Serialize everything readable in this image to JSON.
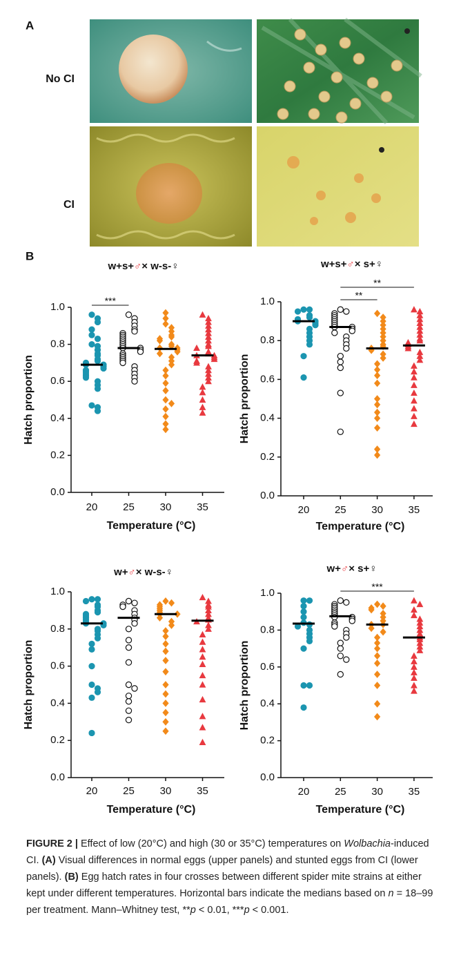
{
  "panel_a": {
    "label": "A",
    "rows": [
      "No CI",
      "CI"
    ]
  },
  "panel_b": {
    "label": "B"
  },
  "chart_data": [
    {
      "type": "strip",
      "title": [
        "w+s+",
        "♂",
        "× w-s-♀"
      ],
      "y_label": "Hatch proportion",
      "x_label": "Temperature (°C)",
      "categories": [
        "20",
        "25",
        "30",
        "35"
      ],
      "colors": [
        "#1b95b0",
        "#111111",
        "#f28a1a",
        "#e8393f"
      ],
      "markers": [
        "circle",
        "open-circle",
        "diamond",
        "triangle"
      ],
      "values": [
        [
          0.96,
          0.94,
          0.92,
          0.88,
          0.85,
          0.83,
          0.8,
          0.79,
          0.77,
          0.75,
          0.74,
          0.72,
          0.71,
          0.7,
          0.69,
          0.69,
          0.68,
          0.67,
          0.66,
          0.65,
          0.64,
          0.63,
          0.62,
          0.6,
          0.58,
          0.56,
          0.47,
          0.46,
          0.44
        ],
        [
          0.96,
          0.94,
          0.92,
          0.9,
          0.88,
          0.87,
          0.86,
          0.85,
          0.84,
          0.83,
          0.82,
          0.81,
          0.8,
          0.79,
          0.78,
          0.78,
          0.77,
          0.76,
          0.75,
          0.74,
          0.73,
          0.72,
          0.71,
          0.7,
          0.68,
          0.66,
          0.64,
          0.62,
          0.6
        ],
        [
          0.97,
          0.94,
          0.91,
          0.89,
          0.87,
          0.85,
          0.84,
          0.83,
          0.82,
          0.8,
          0.79,
          0.78,
          0.78,
          0.77,
          0.76,
          0.75,
          0.73,
          0.71,
          0.69,
          0.66,
          0.63,
          0.59,
          0.55,
          0.5,
          0.48,
          0.45,
          0.41,
          0.37,
          0.34
        ],
        [
          0.96,
          0.94,
          0.92,
          0.9,
          0.88,
          0.86,
          0.84,
          0.82,
          0.8,
          0.79,
          0.78,
          0.76,
          0.75,
          0.74,
          0.74,
          0.73,
          0.72,
          0.71,
          0.7,
          0.68,
          0.66,
          0.64,
          0.62,
          0.6,
          0.57,
          0.54,
          0.5,
          0.46,
          0.43
        ]
      ],
      "medians": [
        0.69,
        0.78,
        0.775,
        0.74
      ],
      "ylim": [
        0,
        1
      ],
      "yticks": [
        {
          "value": 0,
          "label": "0.0"
        },
        0.2,
        0.4,
        0.6,
        0.8,
        {
          "value": 1,
          "label": "1.0"
        }
      ],
      "grid": false,
      "annotations": [
        {
          "text": "***",
          "between": [
            "20",
            "25"
          ]
        }
      ]
    },
    {
      "type": "strip",
      "title": [
        "w+s+",
        "♂",
        "× s+♀"
      ],
      "y_label": "Hatch proportion",
      "x_label": "Temperature (°C)",
      "categories": [
        "20",
        "25",
        "30",
        "35"
      ],
      "colors": [
        "#1b95b0",
        "#111111",
        "#f28a1a",
        "#e8393f"
      ],
      "markers": [
        "circle",
        "open-circle",
        "diamond",
        "triangle"
      ],
      "values": [
        [
          0.96,
          0.96,
          0.95,
          0.93,
          0.92,
          0.91,
          0.9,
          0.9,
          0.89,
          0.88,
          0.86,
          0.84,
          0.82,
          0.8,
          0.78,
          0.72,
          0.61
        ],
        [
          0.96,
          0.95,
          0.94,
          0.93,
          0.92,
          0.91,
          0.9,
          0.89,
          0.88,
          0.87,
          0.87,
          0.86,
          0.85,
          0.84,
          0.82,
          0.8,
          0.78,
          0.76,
          0.72,
          0.69,
          0.66,
          0.53,
          0.33
        ],
        [
          0.94,
          0.92,
          0.9,
          0.88,
          0.86,
          0.84,
          0.82,
          0.8,
          0.78,
          0.77,
          0.76,
          0.75,
          0.73,
          0.71,
          0.68,
          0.65,
          0.62,
          0.58,
          0.5,
          0.47,
          0.43,
          0.4,
          0.35,
          0.24,
          0.21
        ],
        [
          0.96,
          0.95,
          0.93,
          0.91,
          0.89,
          0.87,
          0.85,
          0.83,
          0.81,
          0.8,
          0.79,
          0.78,
          0.77,
          0.76,
          0.74,
          0.72,
          0.7,
          0.67,
          0.64,
          0.61,
          0.57,
          0.53,
          0.49,
          0.45,
          0.41,
          0.37
        ]
      ],
      "medians": [
        0.9,
        0.87,
        0.76,
        0.775
      ],
      "ylim": [
        0,
        1
      ],
      "yticks": [
        {
          "value": 0,
          "label": "0.0"
        },
        0.2,
        0.4,
        0.6,
        0.8,
        {
          "value": 1,
          "label": "1.0"
        }
      ],
      "grid": false,
      "annotations": [
        {
          "text": "**",
          "between": [
            "25",
            "30"
          ]
        },
        {
          "text": "**",
          "between": [
            "25",
            "35"
          ]
        }
      ]
    },
    {
      "type": "strip",
      "title": [
        "w+",
        "♂",
        "× w-s-♀"
      ],
      "y_label": "Hatch proportion",
      "x_label": "Temperature (°C)",
      "categories": [
        "20",
        "25",
        "30",
        "35"
      ],
      "colors": [
        "#1b95b0",
        "#111111",
        "#f28a1a",
        "#e8393f"
      ],
      "markers": [
        "circle",
        "open-circle",
        "diamond",
        "triangle"
      ],
      "values": [
        [
          0.96,
          0.96,
          0.95,
          0.93,
          0.92,
          0.9,
          0.89,
          0.88,
          0.87,
          0.86,
          0.85,
          0.84,
          0.83,
          0.83,
          0.82,
          0.8,
          0.79,
          0.77,
          0.75,
          0.72,
          0.69,
          0.6,
          0.5,
          0.48,
          0.46,
          0.43,
          0.24
        ],
        [
          0.95,
          0.94,
          0.93,
          0.92,
          0.9,
          0.88,
          0.86,
          0.85,
          0.83,
          0.8,
          0.74,
          0.7,
          0.62,
          0.5,
          0.48,
          0.44,
          0.41,
          0.36,
          0.31
        ],
        [
          0.95,
          0.94,
          0.93,
          0.92,
          0.91,
          0.9,
          0.89,
          0.88,
          0.88,
          0.86,
          0.84,
          0.82,
          0.79,
          0.76,
          0.72,
          0.68,
          0.63,
          0.57,
          0.5,
          0.45,
          0.4,
          0.35,
          0.3,
          0.25
        ],
        [
          0.97,
          0.95,
          0.93,
          0.92,
          0.9,
          0.88,
          0.86,
          0.85,
          0.84,
          0.82,
          0.8,
          0.77,
          0.73,
          0.69,
          0.65,
          0.61,
          0.55,
          0.5,
          0.42,
          0.33,
          0.27,
          0.19
        ]
      ],
      "medians": [
        0.83,
        0.86,
        0.88,
        0.845
      ],
      "ylim": [
        0,
        1
      ],
      "yticks": [
        {
          "value": 0,
          "label": "0.0"
        },
        0.2,
        0.4,
        0.6,
        0.8,
        {
          "value": 1,
          "label": "1.0"
        }
      ],
      "grid": false,
      "annotations": []
    },
    {
      "type": "strip",
      "title": [
        "w+",
        "♂",
        "× s+♀"
      ],
      "y_label": "Hatch proportion",
      "x_label": "Temperature (°C)",
      "categories": [
        "20",
        "25",
        "30",
        "35"
      ],
      "colors": [
        "#1b95b0",
        "#111111",
        "#f28a1a",
        "#e8393f"
      ],
      "markers": [
        "circle",
        "open-circle",
        "diamond",
        "triangle"
      ],
      "values": [
        [
          0.96,
          0.96,
          0.93,
          0.9,
          0.87,
          0.84,
          0.83,
          0.82,
          0.8,
          0.78,
          0.76,
          0.74,
          0.7,
          0.5,
          0.5,
          0.38
        ],
        [
          0.96,
          0.95,
          0.94,
          0.93,
          0.92,
          0.91,
          0.9,
          0.89,
          0.88,
          0.87,
          0.87,
          0.86,
          0.85,
          0.84,
          0.83,
          0.82,
          0.8,
          0.78,
          0.76,
          0.73,
          0.7,
          0.66,
          0.64,
          0.56
        ],
        [
          0.94,
          0.93,
          0.92,
          0.91,
          0.89,
          0.87,
          0.85,
          0.83,
          0.83,
          0.81,
          0.79,
          0.76,
          0.73,
          0.7,
          0.66,
          0.62,
          0.56,
          0.5,
          0.4,
          0.33
        ],
        [
          0.96,
          0.94,
          0.91,
          0.88,
          0.86,
          0.84,
          0.82,
          0.8,
          0.78,
          0.76,
          0.75,
          0.73,
          0.71,
          0.69,
          0.66,
          0.63,
          0.6,
          0.57,
          0.54,
          0.5,
          0.47
        ]
      ],
      "medians": [
        0.835,
        0.875,
        0.83,
        0.76
      ],
      "ylim": [
        0,
        1
      ],
      "yticks": [
        {
          "value": 0,
          "label": "0.0"
        },
        0.2,
        0.4,
        0.6,
        0.8,
        {
          "value": 1,
          "label": "1.0"
        }
      ],
      "grid": false,
      "annotations": [
        {
          "text": "***",
          "between": [
            "25",
            "35"
          ]
        }
      ]
    }
  ],
  "caption": {
    "segments": [
      "FIGURE 2 |",
      " Effect of low (20°C) and high (30 or 35°C) temperatures on ",
      "Wolbachia",
      "-induced CI. ",
      "(A)",
      " Visual differences in normal eggs (upper panels) and stunted eggs from CI (lower panels). ",
      "(B)",
      " Egg hatch rates in four crosses between different spider mite strains at either kept under different temperatures. Horizontal bars indicate the medians based on ",
      "n",
      " = 18–99 per treatment. Mann–Whitney test, **",
      "p",
      " < 0.01, ***",
      "p",
      " < 0.001."
    ]
  }
}
